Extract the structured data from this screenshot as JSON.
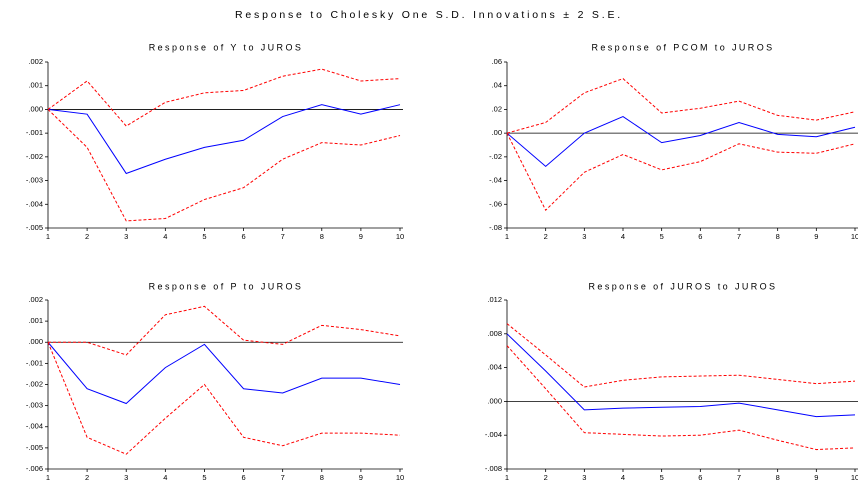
{
  "title": "Response to Cholesky One S.D. Innovations ± 2 S.E.",
  "chart_data": [
    {
      "type": "line",
      "title": "Response of Y to JUROS",
      "x": [
        1,
        2,
        3,
        4,
        5,
        6,
        7,
        8,
        9,
        10
      ],
      "xlim": [
        1,
        10
      ],
      "xticks": [
        1,
        2,
        3,
        4,
        5,
        6,
        7,
        8,
        9,
        10
      ],
      "ylim": [
        -0.005,
        0.002
      ],
      "yticks": [
        {
          "value": 0.002,
          "label": ".002"
        },
        {
          "value": 0.001,
          "label": ".001"
        },
        {
          "value": 0,
          "label": ".000"
        },
        {
          "value": -0.001,
          "label": "-.001"
        },
        {
          "value": -0.002,
          "label": "-.002"
        },
        {
          "value": -0.003,
          "label": "-.003"
        },
        {
          "value": -0.004,
          "label": "-.004"
        },
        {
          "value": -0.005,
          "label": "-.005"
        }
      ],
      "zero_line": true,
      "series": [
        {
          "color": "#0000ff",
          "dashed": false,
          "values": [
            0,
            -0.0002,
            -0.0027,
            -0.0021,
            -0.0016,
            -0.0013,
            -0.0003,
            0.0002,
            -0.0002,
            0.0002
          ]
        },
        {
          "color": "#ff0000",
          "dashed": true,
          "values": [
            0,
            0.0012,
            -0.0007,
            0.0003,
            0.0007,
            0.0008,
            0.0014,
            0.0017,
            0.0012,
            0.0013
          ]
        },
        {
          "color": "#ff0000",
          "dashed": true,
          "values": [
            0,
            -0.0016,
            -0.0047,
            -0.0046,
            -0.0038,
            -0.0033,
            -0.0021,
            -0.0014,
            -0.0015,
            -0.0011
          ]
        }
      ]
    },
    {
      "type": "line",
      "title": "Response of PCOM to JUROS",
      "x": [
        1,
        2,
        3,
        4,
        5,
        6,
        7,
        8,
        9,
        10
      ],
      "xlim": [
        1,
        10
      ],
      "xticks": [
        1,
        2,
        3,
        4,
        5,
        6,
        7,
        8,
        9,
        10
      ],
      "ylim": [
        -0.08,
        0.06
      ],
      "yticks": [
        {
          "value": 0.06,
          "label": ".06"
        },
        {
          "value": 0.04,
          "label": ".04"
        },
        {
          "value": 0.02,
          "label": ".02"
        },
        {
          "value": 0,
          "label": ".00"
        },
        {
          "value": -0.02,
          "label": "-.02"
        },
        {
          "value": -0.04,
          "label": "-.04"
        },
        {
          "value": -0.06,
          "label": "-.06"
        },
        {
          "value": -0.08,
          "label": "-.08"
        }
      ],
      "zero_line": true,
      "series": [
        {
          "color": "#0000ff",
          "dashed": false,
          "values": [
            0,
            -0.028,
            0.0,
            0.014,
            -0.008,
            -0.002,
            0.009,
            -0.001,
            -0.003,
            0.005
          ]
        },
        {
          "color": "#ff0000",
          "dashed": true,
          "values": [
            0,
            0.009,
            0.034,
            0.046,
            0.017,
            0.021,
            0.027,
            0.015,
            0.011,
            0.018
          ]
        },
        {
          "color": "#ff0000",
          "dashed": true,
          "values": [
            0,
            -0.065,
            -0.033,
            -0.018,
            -0.031,
            -0.024,
            -0.009,
            -0.016,
            -0.017,
            -0.009
          ]
        }
      ]
    },
    {
      "type": "line",
      "title": "Response of P to JUROS",
      "x": [
        1,
        2,
        3,
        4,
        5,
        6,
        7,
        8,
        9,
        10
      ],
      "xlim": [
        1,
        10
      ],
      "xticks": [
        1,
        2,
        3,
        4,
        5,
        6,
        7,
        8,
        9,
        10
      ],
      "ylim": [
        -0.006,
        0.002
      ],
      "yticks": [
        {
          "value": 0.002,
          "label": ".002"
        },
        {
          "value": 0.001,
          "label": ".001"
        },
        {
          "value": 0,
          "label": ".000"
        },
        {
          "value": -0.001,
          "label": "-.001"
        },
        {
          "value": -0.002,
          "label": "-.002"
        },
        {
          "value": -0.003,
          "label": "-.003"
        },
        {
          "value": -0.004,
          "label": "-.004"
        },
        {
          "value": -0.005,
          "label": "-.005"
        },
        {
          "value": -0.006,
          "label": "-.006"
        }
      ],
      "zero_line": true,
      "series": [
        {
          "color": "#0000ff",
          "dashed": false,
          "values": [
            0,
            -0.0022,
            -0.0029,
            -0.0012,
            -0.0001,
            -0.0022,
            -0.0024,
            -0.0017,
            -0.0017,
            -0.002
          ]
        },
        {
          "color": "#ff0000",
          "dashed": true,
          "values": [
            0,
            0.0,
            -0.0006,
            0.0013,
            0.0017,
            0.0001,
            -0.0001,
            0.0008,
            0.0006,
            0.0003
          ]
        },
        {
          "color": "#ff0000",
          "dashed": true,
          "values": [
            0,
            -0.0045,
            -0.0053,
            -0.0036,
            -0.002,
            -0.0045,
            -0.0049,
            -0.0043,
            -0.0043,
            -0.0044
          ]
        }
      ]
    },
    {
      "type": "line",
      "title": "Response of JUROS to JUROS",
      "x": [
        1,
        2,
        3,
        4,
        5,
        6,
        7,
        8,
        9,
        10
      ],
      "xlim": [
        1,
        10
      ],
      "xticks": [
        1,
        2,
        3,
        4,
        5,
        6,
        7,
        8,
        9,
        10
      ],
      "ylim": [
        -0.008,
        0.012
      ],
      "yticks": [
        {
          "value": 0.012,
          "label": ".012"
        },
        {
          "value": 0.008,
          "label": ".008"
        },
        {
          "value": 0.004,
          "label": ".004"
        },
        {
          "value": 0,
          "label": ".000"
        },
        {
          "value": -0.004,
          "label": "-.004"
        },
        {
          "value": -0.008,
          "label": "-.008"
        }
      ],
      "zero_line": true,
      "series": [
        {
          "color": "#0000ff",
          "dashed": false,
          "values": [
            0.008,
            0.0036,
            -0.001,
            -0.0008,
            -0.0007,
            -0.0006,
            -0.0002,
            -0.001,
            -0.0018,
            -0.0016
          ]
        },
        {
          "color": "#ff0000",
          "dashed": true,
          "values": [
            0.0092,
            0.0055,
            0.0017,
            0.0025,
            0.0029,
            0.003,
            0.0031,
            0.0026,
            0.0021,
            0.0024
          ]
        },
        {
          "color": "#ff0000",
          "dashed": true,
          "values": [
            0.0066,
            0.0015,
            -0.0037,
            -0.0039,
            -0.0041,
            -0.004,
            -0.0034,
            -0.0046,
            -0.0057,
            -0.0055
          ]
        }
      ]
    }
  ]
}
